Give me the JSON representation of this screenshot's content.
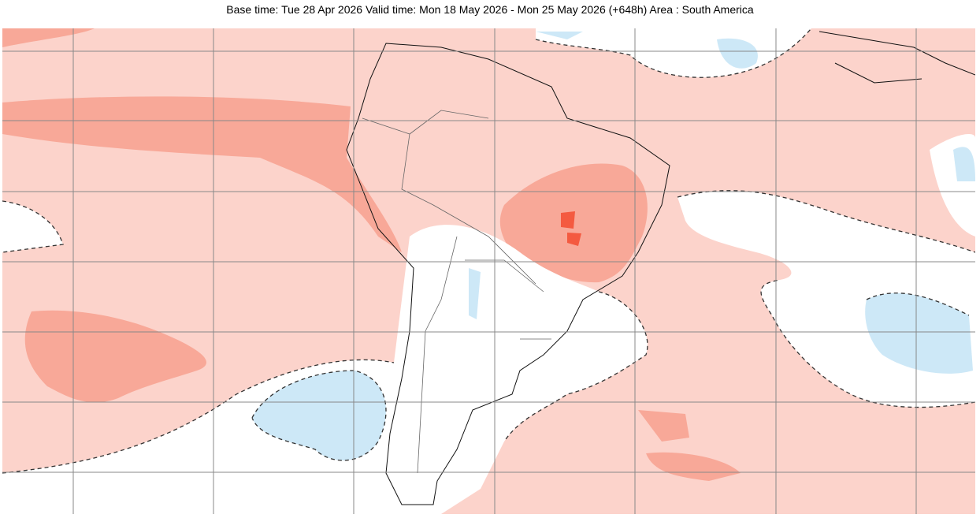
{
  "header": {
    "title": "Base time: Tue 28 Apr 2026 Valid time: Mon 18 May 2026 - Mon 25 May 2026 (+648h) Area : South America"
  }
}
